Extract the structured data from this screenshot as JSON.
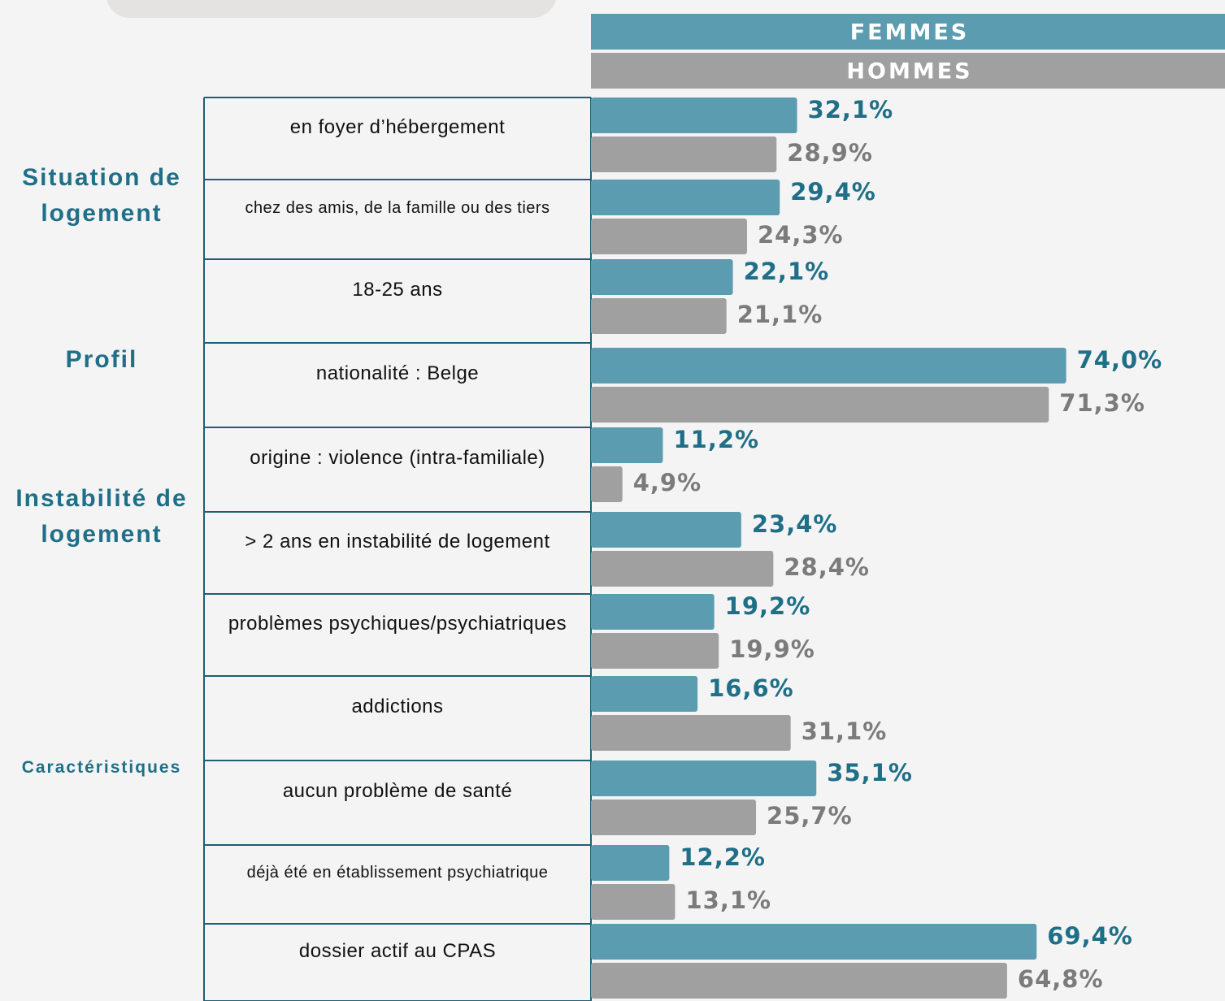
{
  "chart_data": {
    "type": "bar",
    "orientation": "horizontal",
    "groups": [
      "Situation de logement",
      "Profil",
      "Instabilité de logement",
      "Caractéristiques"
    ],
    "categories": [
      "en foyer d’hébergement",
      "chez des amis, de la famille ou des tiers",
      "18-25 ans",
      "nationalité : Belge",
      "origine : violence (intra-familiale)",
      "> 2 ans en instabilité de logement",
      "problèmes psychiques/psychiatriques",
      "addictions",
      "aucun problème de santé",
      "déjà été en établissement psychiatrique",
      "dossier actif au CPAS"
    ],
    "xlim": [
      0,
      100
    ],
    "series": [
      {
        "name": "FEMMES",
        "color": "#5c9cb1",
        "label_color": "#1e6f87",
        "values": [
          32.1,
          29.4,
          22.1,
          74.0,
          11.2,
          23.4,
          19.2,
          16.6,
          35.1,
          12.2,
          69.4
        ],
        "value_labels": [
          "32,1%",
          "29,4%",
          "22,1%",
          "74,0%",
          "11,2%",
          "23,4%",
          "19,2%",
          "16,6%",
          "35,1%",
          "12,2%",
          "69,4%"
        ]
      },
      {
        "name": "HOMMES",
        "color": "#a0a0a0",
        "label_color": "#7b7b7b",
        "values": [
          28.9,
          24.3,
          21.1,
          71.3,
          4.9,
          28.4,
          19.9,
          31.1,
          25.7,
          13.1,
          64.8
        ],
        "value_labels": [
          "28,9%",
          "24,3%",
          "21,1%",
          "71,3%",
          "4,9%",
          "28,4%",
          "19,9%",
          "31,1%",
          "25,7%",
          "13,1%",
          "64,8%"
        ]
      }
    ]
  }
}
